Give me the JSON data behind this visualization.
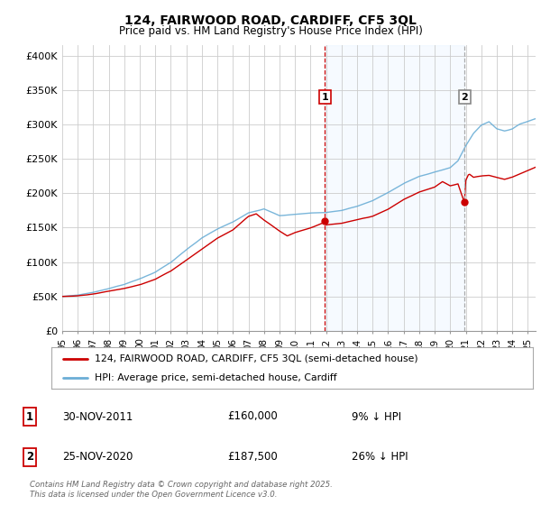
{
  "title": "124, FAIRWOOD ROAD, CARDIFF, CF5 3QL",
  "subtitle": "Price paid vs. HM Land Registry's House Price Index (HPI)",
  "ylabel_ticks": [
    "£0",
    "£50K",
    "£100K",
    "£150K",
    "£200K",
    "£250K",
    "£300K",
    "£350K",
    "£400K"
  ],
  "ylabel_values": [
    0,
    50000,
    100000,
    150000,
    200000,
    250000,
    300000,
    350000,
    400000
  ],
  "ylim": [
    0,
    415000
  ],
  "xlim_start": 1995.0,
  "xlim_end": 2025.5,
  "hpi_color": "#6baed6",
  "price_color": "#cc0000",
  "background_chart": "#ffffff",
  "grid_color": "#cccccc",
  "shade_color": "#ddeeff",
  "vline1_color": "#cc0000",
  "vline2_color": "#aaaaaa",
  "legend_label_price": "124, FAIRWOOD ROAD, CARDIFF, CF5 3QL (semi-detached house)",
  "legend_label_hpi": "HPI: Average price, semi-detached house, Cardiff",
  "annotation1_date": "30-NOV-2011",
  "annotation1_price": "£160,000",
  "annotation1_pct": "9% ↓ HPI",
  "annotation2_date": "25-NOV-2020",
  "annotation2_price": "£187,500",
  "annotation2_pct": "26% ↓ HPI",
  "footer": "Contains HM Land Registry data © Crown copyright and database right 2025.\nThis data is licensed under the Open Government Licence v3.0.",
  "transaction1_x": 2011.92,
  "transaction1_y": 160000,
  "transaction2_x": 2020.92,
  "transaction2_y": 187500
}
